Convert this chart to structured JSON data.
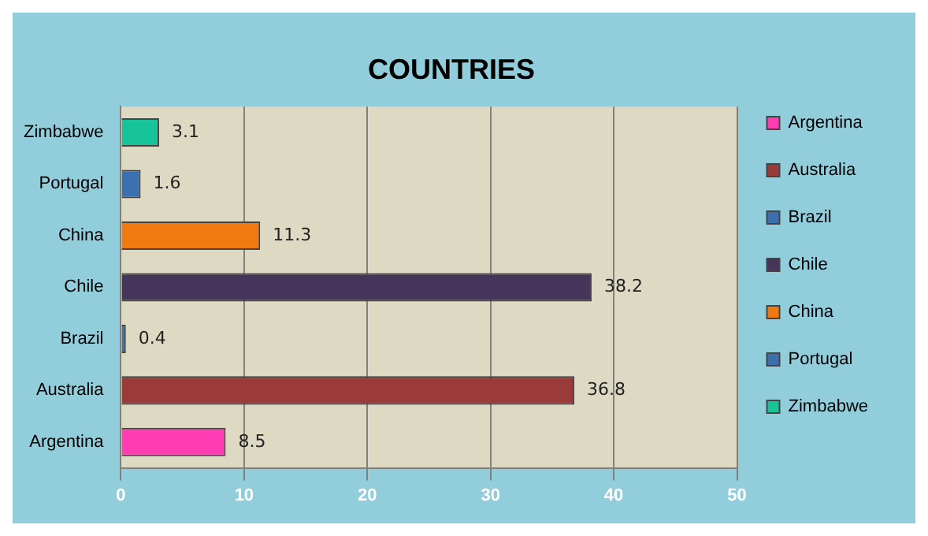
{
  "chart_data": {
    "type": "bar",
    "title": "COUNTRIES",
    "orientation": "horizontal",
    "categories": [
      "Zimbabwe",
      "Portugal",
      "China",
      "Chile",
      "Brazil",
      "Australia",
      "Argentina"
    ],
    "series": [
      {
        "name": "Argentina",
        "color": "#ff3cb4",
        "values": [
          null,
          null,
          null,
          null,
          null,
          null,
          8.5
        ]
      },
      {
        "name": "Australia",
        "color": "#9a3b3a",
        "values": [
          null,
          null,
          null,
          null,
          null,
          36.8,
          null
        ]
      },
      {
        "name": "Brazil",
        "color": "#3a6fb0",
        "values": [
          null,
          null,
          null,
          null,
          0.4,
          null,
          null
        ]
      },
      {
        "name": "Chile",
        "color": "#45355a",
        "values": [
          null,
          null,
          null,
          38.2,
          null,
          null,
          null
        ]
      },
      {
        "name": "China",
        "color": "#f07a10",
        "values": [
          null,
          null,
          11.3,
          null,
          null,
          null,
          null
        ]
      },
      {
        "name": "Portugal",
        "color": "#3a6fb0",
        "values": [
          null,
          1.6,
          null,
          null,
          null,
          null,
          null
        ]
      },
      {
        "name": "Zimbabwe",
        "color": "#17c49a",
        "values": [
          3.1,
          null,
          null,
          null,
          null,
          null,
          null
        ]
      }
    ],
    "xlim": [
      0,
      50
    ],
    "xticks": [
      0,
      10,
      20,
      30,
      40,
      50
    ],
    "grid": "x",
    "legend": "right",
    "data_labels": true
  }
}
